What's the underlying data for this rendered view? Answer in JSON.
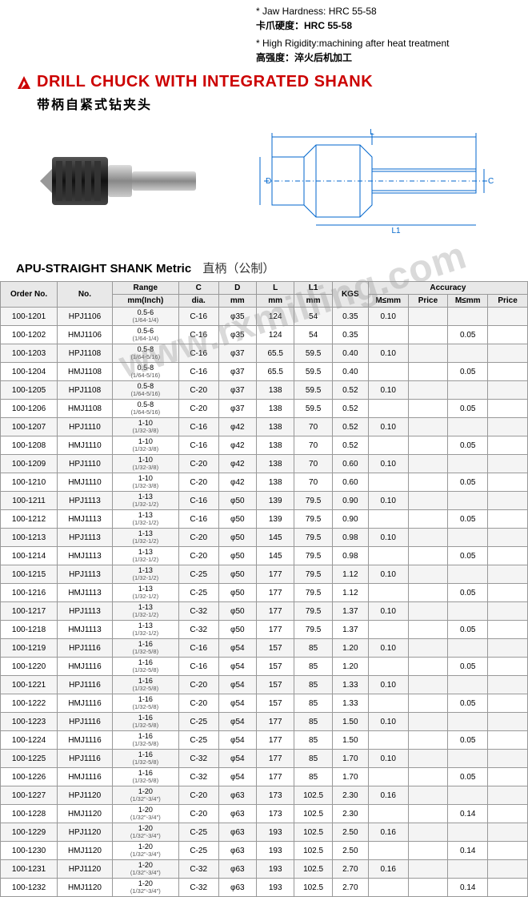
{
  "top_specs": {
    "line1_en": "* Jaw Hardness:  HRC 55-58",
    "line1_cn": "卡爪硬度：HRC 55-58",
    "line2_en": "* High Rigidity:machining after heat treatment",
    "line2_cn": "高强度：淬火后机加工"
  },
  "title": {
    "main": "DRILL CHUCK WITH INTEGRATED SHANK",
    "cn": "带柄自紧式钻夹头"
  },
  "section": {
    "label": "APU-STRAIGHT SHANK Metric",
    "cn": "直柄（公制）"
  },
  "watermark": "www.rxmilling.com",
  "table": {
    "headers": {
      "order": "Order No.",
      "no": "No.",
      "range": "Range",
      "range_sub": "mm(Inch)",
      "c": "C",
      "c_sub": "dia.",
      "d": "D",
      "d_sub": "mm",
      "l": "L",
      "l_sub": "mm",
      "l1": "L1",
      "l1_sub": "mm",
      "kgs": "KGS",
      "accuracy": "Accuracy",
      "acc1": "M≤mm",
      "acc1b": "Price",
      "acc2": "M≤mm",
      "acc2b": "Price"
    },
    "rows": [
      {
        "order": "100-1201",
        "no": "HPJ1106",
        "range": "0.5-6",
        "rsub": "(1/64-1/4)",
        "c": "C-16",
        "d": "φ35",
        "l": "124",
        "l1": "54",
        "kgs": "0.35",
        "a1": "0.10",
        "a1p": "",
        "a2": "",
        "a2p": ""
      },
      {
        "order": "100-1202",
        "no": "HMJ1106",
        "range": "0.5-6",
        "rsub": "(1/64-1/4)",
        "c": "C-16",
        "d": "φ35",
        "l": "124",
        "l1": "54",
        "kgs": "0.35",
        "a1": "",
        "a1p": "",
        "a2": "0.05",
        "a2p": ""
      },
      {
        "order": "100-1203",
        "no": "HPJ1108",
        "range": "0.5-8",
        "rsub": "(1/64-5/16)",
        "c": "C-16",
        "d": "φ37",
        "l": "65.5",
        "l1": "59.5",
        "kgs": "0.40",
        "a1": "0.10",
        "a1p": "",
        "a2": "",
        "a2p": ""
      },
      {
        "order": "100-1204",
        "no": "HMJ1108",
        "range": "0.5-8",
        "rsub": "(1/64-5/16)",
        "c": "C-16",
        "d": "φ37",
        "l": "65.5",
        "l1": "59.5",
        "kgs": "0.40",
        "a1": "",
        "a1p": "",
        "a2": "0.05",
        "a2p": ""
      },
      {
        "order": "100-1205",
        "no": "HPJ1108",
        "range": "0.5-8",
        "rsub": "(1/64-5/16)",
        "c": "C-20",
        "d": "φ37",
        "l": "138",
        "l1": "59.5",
        "kgs": "0.52",
        "a1": "0.10",
        "a1p": "",
        "a2": "",
        "a2p": ""
      },
      {
        "order": "100-1206",
        "no": "HMJ1108",
        "range": "0.5-8",
        "rsub": "(1/64-5/16)",
        "c": "C-20",
        "d": "φ37",
        "l": "138",
        "l1": "59.5",
        "kgs": "0.52",
        "a1": "",
        "a1p": "",
        "a2": "0.05",
        "a2p": ""
      },
      {
        "order": "100-1207",
        "no": "HPJ1110",
        "range": "1-10",
        "rsub": "(1/32-3/8)",
        "c": "C-16",
        "d": "φ42",
        "l": "138",
        "l1": "70",
        "kgs": "0.52",
        "a1": "0.10",
        "a1p": "",
        "a2": "",
        "a2p": ""
      },
      {
        "order": "100-1208",
        "no": "HMJ1110",
        "range": "1-10",
        "rsub": "(1/32-3/8)",
        "c": "C-16",
        "d": "φ42",
        "l": "138",
        "l1": "70",
        "kgs": "0.52",
        "a1": "",
        "a1p": "",
        "a2": "0.05",
        "a2p": ""
      },
      {
        "order": "100-1209",
        "no": "HPJ1110",
        "range": "1-10",
        "rsub": "(1/32-3/8)",
        "c": "C-20",
        "d": "φ42",
        "l": "138",
        "l1": "70",
        "kgs": "0.60",
        "a1": "0.10",
        "a1p": "",
        "a2": "",
        "a2p": ""
      },
      {
        "order": "100-1210",
        "no": "HMJ1110",
        "range": "1-10",
        "rsub": "(1/32-3/8)",
        "c": "C-20",
        "d": "φ42",
        "l": "138",
        "l1": "70",
        "kgs": "0.60",
        "a1": "",
        "a1p": "",
        "a2": "0.05",
        "a2p": ""
      },
      {
        "order": "100-1211",
        "no": "HPJ1113",
        "range": "1-13",
        "rsub": "(1/32-1/2)",
        "c": "C-16",
        "d": "φ50",
        "l": "139",
        "l1": "79.5",
        "kgs": "0.90",
        "a1": "0.10",
        "a1p": "",
        "a2": "",
        "a2p": ""
      },
      {
        "order": "100-1212",
        "no": "HMJ1113",
        "range": "1-13",
        "rsub": "(1/32-1/2)",
        "c": "C-16",
        "d": "φ50",
        "l": "139",
        "l1": "79.5",
        "kgs": "0.90",
        "a1": "",
        "a1p": "",
        "a2": "0.05",
        "a2p": ""
      },
      {
        "order": "100-1213",
        "no": "HPJ1113",
        "range": "1-13",
        "rsub": "(1/32-1/2)",
        "c": "C-20",
        "d": "φ50",
        "l": "145",
        "l1": "79.5",
        "kgs": "0.98",
        "a1": "0.10",
        "a1p": "",
        "a2": "",
        "a2p": ""
      },
      {
        "order": "100-1214",
        "no": "HMJ1113",
        "range": "1-13",
        "rsub": "(1/32-1/2)",
        "c": "C-20",
        "d": "φ50",
        "l": "145",
        "l1": "79.5",
        "kgs": "0.98",
        "a1": "",
        "a1p": "",
        "a2": "0.05",
        "a2p": ""
      },
      {
        "order": "100-1215",
        "no": "HPJ1113",
        "range": "1-13",
        "rsub": "(1/32-1/2)",
        "c": "C-25",
        "d": "φ50",
        "l": "177",
        "l1": "79.5",
        "kgs": "1.12",
        "a1": "0.10",
        "a1p": "",
        "a2": "",
        "a2p": ""
      },
      {
        "order": "100-1216",
        "no": "HMJ1113",
        "range": "1-13",
        "rsub": "(1/32-1/2)",
        "c": "C-25",
        "d": "φ50",
        "l": "177",
        "l1": "79.5",
        "kgs": "1.12",
        "a1": "",
        "a1p": "",
        "a2": "0.05",
        "a2p": ""
      },
      {
        "order": "100-1217",
        "no": "HPJ1113",
        "range": "1-13",
        "rsub": "(1/32-1/2)",
        "c": "C-32",
        "d": "φ50",
        "l": "177",
        "l1": "79.5",
        "kgs": "1.37",
        "a1": "0.10",
        "a1p": "",
        "a2": "",
        "a2p": ""
      },
      {
        "order": "100-1218",
        "no": "HMJ1113",
        "range": "1-13",
        "rsub": "(1/32-1/2)",
        "c": "C-32",
        "d": "φ50",
        "l": "177",
        "l1": "79.5",
        "kgs": "1.37",
        "a1": "",
        "a1p": "",
        "a2": "0.05",
        "a2p": ""
      },
      {
        "order": "100-1219",
        "no": "HPJ1116",
        "range": "1-16",
        "rsub": "(1/32-5/8)",
        "c": "C-16",
        "d": "φ54",
        "l": "157",
        "l1": "85",
        "kgs": "1.20",
        "a1": "0.10",
        "a1p": "",
        "a2": "",
        "a2p": ""
      },
      {
        "order": "100-1220",
        "no": "HMJ1116",
        "range": "1-16",
        "rsub": "(1/32-5/8)",
        "c": "C-16",
        "d": "φ54",
        "l": "157",
        "l1": "85",
        "kgs": "1.20",
        "a1": "",
        "a1p": "",
        "a2": "0.05",
        "a2p": ""
      },
      {
        "order": "100-1221",
        "no": "HPJ1116",
        "range": "1-16",
        "rsub": "(1/32-5/8)",
        "c": "C-20",
        "d": "φ54",
        "l": "157",
        "l1": "85",
        "kgs": "1.33",
        "a1": "0.10",
        "a1p": "",
        "a2": "",
        "a2p": ""
      },
      {
        "order": "100-1222",
        "no": "HMJ1116",
        "range": "1-16",
        "rsub": "(1/32-5/8)",
        "c": "C-20",
        "d": "φ54",
        "l": "157",
        "l1": "85",
        "kgs": "1.33",
        "a1": "",
        "a1p": "",
        "a2": "0.05",
        "a2p": ""
      },
      {
        "order": "100-1223",
        "no": "HPJ1116",
        "range": "1-16",
        "rsub": "(1/32-5/8)",
        "c": "C-25",
        "d": "φ54",
        "l": "177",
        "l1": "85",
        "kgs": "1.50",
        "a1": "0.10",
        "a1p": "",
        "a2": "",
        "a2p": ""
      },
      {
        "order": "100-1224",
        "no": "HMJ1116",
        "range": "1-16",
        "rsub": "(1/32-5/8)",
        "c": "C-25",
        "d": "φ54",
        "l": "177",
        "l1": "85",
        "kgs": "1.50",
        "a1": "",
        "a1p": "",
        "a2": "0.05",
        "a2p": ""
      },
      {
        "order": "100-1225",
        "no": "HPJ1116",
        "range": "1-16",
        "rsub": "(1/32-5/8)",
        "c": "C-32",
        "d": "φ54",
        "l": "177",
        "l1": "85",
        "kgs": "1.70",
        "a1": "0.10",
        "a1p": "",
        "a2": "",
        "a2p": ""
      },
      {
        "order": "100-1226",
        "no": "HMJ1116",
        "range": "1-16",
        "rsub": "(1/32-5/8)",
        "c": "C-32",
        "d": "φ54",
        "l": "177",
        "l1": "85",
        "kgs": "1.70",
        "a1": "",
        "a1p": "",
        "a2": "0.05",
        "a2p": ""
      },
      {
        "order": "100-1227",
        "no": "HPJ1120",
        "range": "1-20",
        "rsub": "(1/32\"-3/4\")",
        "c": "C-20",
        "d": "φ63",
        "l": "173",
        "l1": "102.5",
        "kgs": "2.30",
        "a1": "0.16",
        "a1p": "",
        "a2": "",
        "a2p": ""
      },
      {
        "order": "100-1228",
        "no": "HMJ1120",
        "range": "1-20",
        "rsub": "(1/32\"-3/4\")",
        "c": "C-20",
        "d": "φ63",
        "l": "173",
        "l1": "102.5",
        "kgs": "2.30",
        "a1": "",
        "a1p": "",
        "a2": "0.14",
        "a2p": ""
      },
      {
        "order": "100-1229",
        "no": "HPJ1120",
        "range": "1-20",
        "rsub": "(1/32\"-3/4\")",
        "c": "C-25",
        "d": "φ63",
        "l": "193",
        "l1": "102.5",
        "kgs": "2.50",
        "a1": "0.16",
        "a1p": "",
        "a2": "",
        "a2p": ""
      },
      {
        "order": "100-1230",
        "no": "HMJ1120",
        "range": "1-20",
        "rsub": "(1/32\"-3/4\")",
        "c": "C-25",
        "d": "φ63",
        "l": "193",
        "l1": "102.5",
        "kgs": "2.50",
        "a1": "",
        "a1p": "",
        "a2": "0.14",
        "a2p": ""
      },
      {
        "order": "100-1231",
        "no": "HPJ1120",
        "range": "1-20",
        "rsub": "(1/32\"-3/4\")",
        "c": "C-32",
        "d": "φ63",
        "l": "193",
        "l1": "102.5",
        "kgs": "2.70",
        "a1": "0.16",
        "a1p": "",
        "a2": "",
        "a2p": ""
      },
      {
        "order": "100-1232",
        "no": "HMJ1120",
        "range": "1-20",
        "rsub": "(1/32\"-3/4\")",
        "c": "C-32",
        "d": "φ63",
        "l": "193",
        "l1": "102.5",
        "kgs": "2.70",
        "a1": "",
        "a1p": "",
        "a2": "0.14",
        "a2p": ""
      }
    ]
  }
}
